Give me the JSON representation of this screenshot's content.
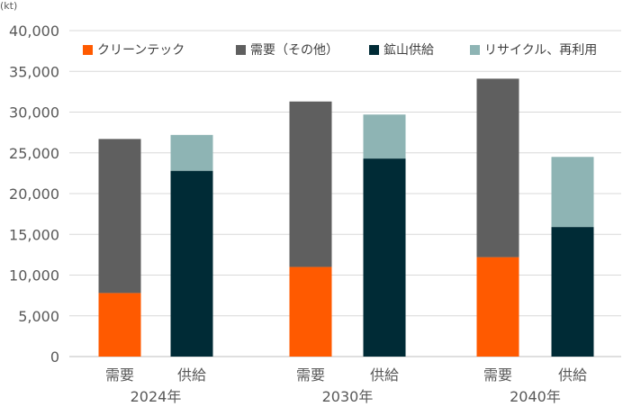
{
  "chart_data": {
    "type": "bar",
    "stacked": true,
    "unit_label": "(kt)",
    "ylim": [
      0,
      40000
    ],
    "ytick_step": 5000,
    "ytick_labels": [
      "0",
      "5,000",
      "10,000",
      "15,000",
      "20,000",
      "25,000",
      "30,000",
      "35,000",
      "40,000"
    ],
    "grid": true,
    "legend_position": "top",
    "groups": [
      {
        "label": "2024年",
        "bars": [
          {
            "label": "需要",
            "segments": [
              {
                "series": "クリーンテック",
                "value": 7800
              },
              {
                "series": "需要（その他）",
                "value": 18900
              }
            ]
          },
          {
            "label": "供給",
            "segments": [
              {
                "series": "鉱山供給",
                "value": 22800
              },
              {
                "series": "リサイクル、再利用",
                "value": 4400
              }
            ]
          }
        ]
      },
      {
        "label": "2030年",
        "bars": [
          {
            "label": "需要",
            "segments": [
              {
                "series": "クリーンテック",
                "value": 11000
              },
              {
                "series": "需要（その他）",
                "value": 20300
              }
            ]
          },
          {
            "label": "供給",
            "segments": [
              {
                "series": "鉱山供給",
                "value": 24300
              },
              {
                "series": "リサイクル、再利用",
                "value": 5400
              }
            ]
          }
        ]
      },
      {
        "label": "2040年",
        "bars": [
          {
            "label": "需要",
            "segments": [
              {
                "series": "クリーンテック",
                "value": 12200
              },
              {
                "series": "需要（その他）",
                "value": 21900
              }
            ]
          },
          {
            "label": "供給",
            "segments": [
              {
                "series": "鉱山供給",
                "value": 15900
              },
              {
                "series": "リサイクル、再利用",
                "value": 8600
              }
            ]
          }
        ]
      }
    ],
    "series": [
      {
        "name": "クリーンテック",
        "color": "#ff5a00"
      },
      {
        "name": "需要（その他）",
        "color": "#5f5f5f"
      },
      {
        "name": "鉱山供給",
        "color": "#002b36"
      },
      {
        "name": "リサイクル、再利用",
        "color": "#8eb4b4"
      }
    ]
  }
}
